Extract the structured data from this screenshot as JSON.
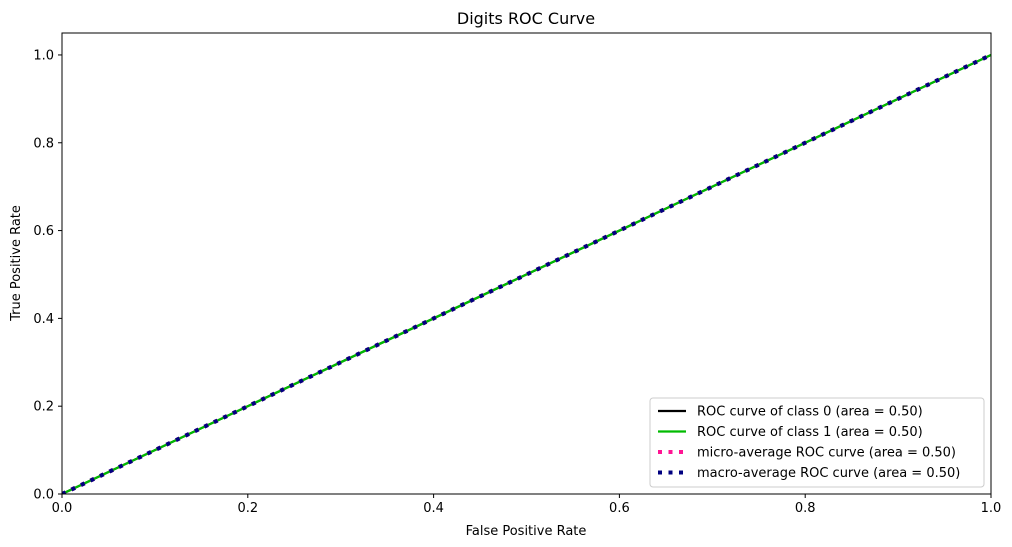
{
  "chart_data": {
    "type": "line",
    "title": "Digits ROC Curve",
    "xlabel": "False Positive Rate",
    "ylabel": "True Positive Rate",
    "xlim": [
      0.0,
      1.0
    ],
    "ylim": [
      0.0,
      1.05
    ],
    "x_ticks": [
      "0.0",
      "0.2",
      "0.4",
      "0.6",
      "0.8",
      "1.0"
    ],
    "y_ticks": [
      "0.0",
      "0.2",
      "0.4",
      "0.6",
      "0.8",
      "1.0"
    ],
    "grid": false,
    "legend_position": "bottom-right",
    "series": [
      {
        "name": "ROC curve of class 0 (area = 0.50)",
        "color": "#000000",
        "style": "solid",
        "x": [
          0.0,
          1.0
        ],
        "y": [
          0.0,
          1.0
        ]
      },
      {
        "name": "ROC curve of class 1 (area = 0.50)",
        "color": "#00bb00",
        "style": "solid",
        "x": [
          0.0,
          1.0
        ],
        "y": [
          0.0,
          1.0
        ]
      },
      {
        "name": "micro-average ROC curve (area = 0.50)",
        "color": "#ff1493",
        "style": "dotted",
        "x": [
          0.0,
          1.0
        ],
        "y": [
          0.0,
          1.0
        ]
      },
      {
        "name": "macro-average ROC curve (area = 0.50)",
        "color": "#000080",
        "style": "dotted",
        "x": [
          0.0,
          1.0
        ],
        "y": [
          0.0,
          1.0
        ]
      }
    ],
    "reference_line": {
      "color": "#000000",
      "style": "dashed",
      "x": [
        0.0,
        1.0
      ],
      "y": [
        0.0,
        1.0
      ]
    }
  }
}
